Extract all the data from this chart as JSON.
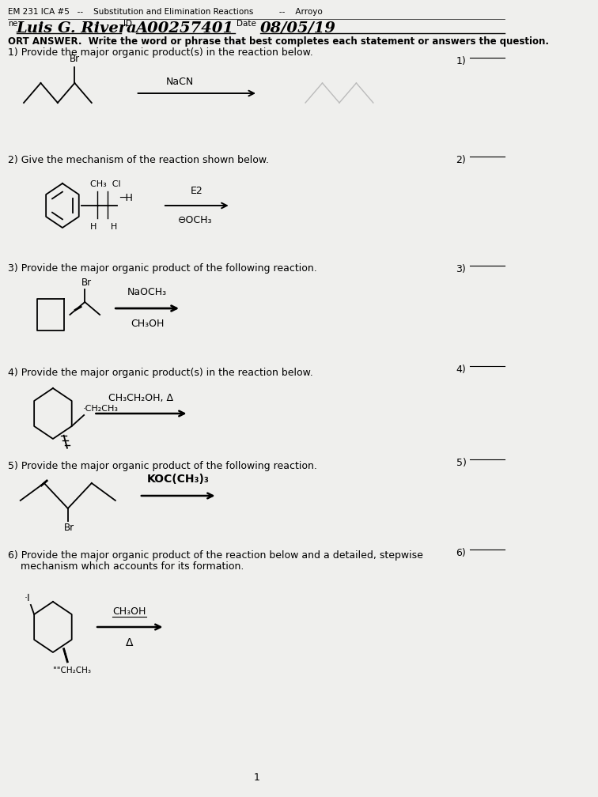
{
  "bg_color": "#efefed",
  "header1": "EM 231 ICA #5   --    Substitution and Elimination Reactions          --    Arroyo",
  "name_prefix": "ne",
  "name_written": "Luis G. Rivera",
  "id_label": "ID",
  "id_written": "A00257401",
  "date_label": "Date",
  "date_written": "08/05/19",
  "instruction": "ORT ANSWER.  Write the word or phrase that best completes each statement or answers the question.",
  "q1": "1) Provide the major organic product(s) in the reaction below.",
  "q2": "2) Give the mechanism of the reaction shown below.",
  "q3": "3) Provide the major organic product of the following reaction.",
  "q4": "4) Provide the major organic product(s) in the reaction below.",
  "q5": "5) Provide the major organic product of the following reaction.",
  "q6a": "6) Provide the major organic product of the reaction below and a detailed, stepwise",
  "q6b": "    mechanism which accounts for its formation.",
  "page": "1"
}
